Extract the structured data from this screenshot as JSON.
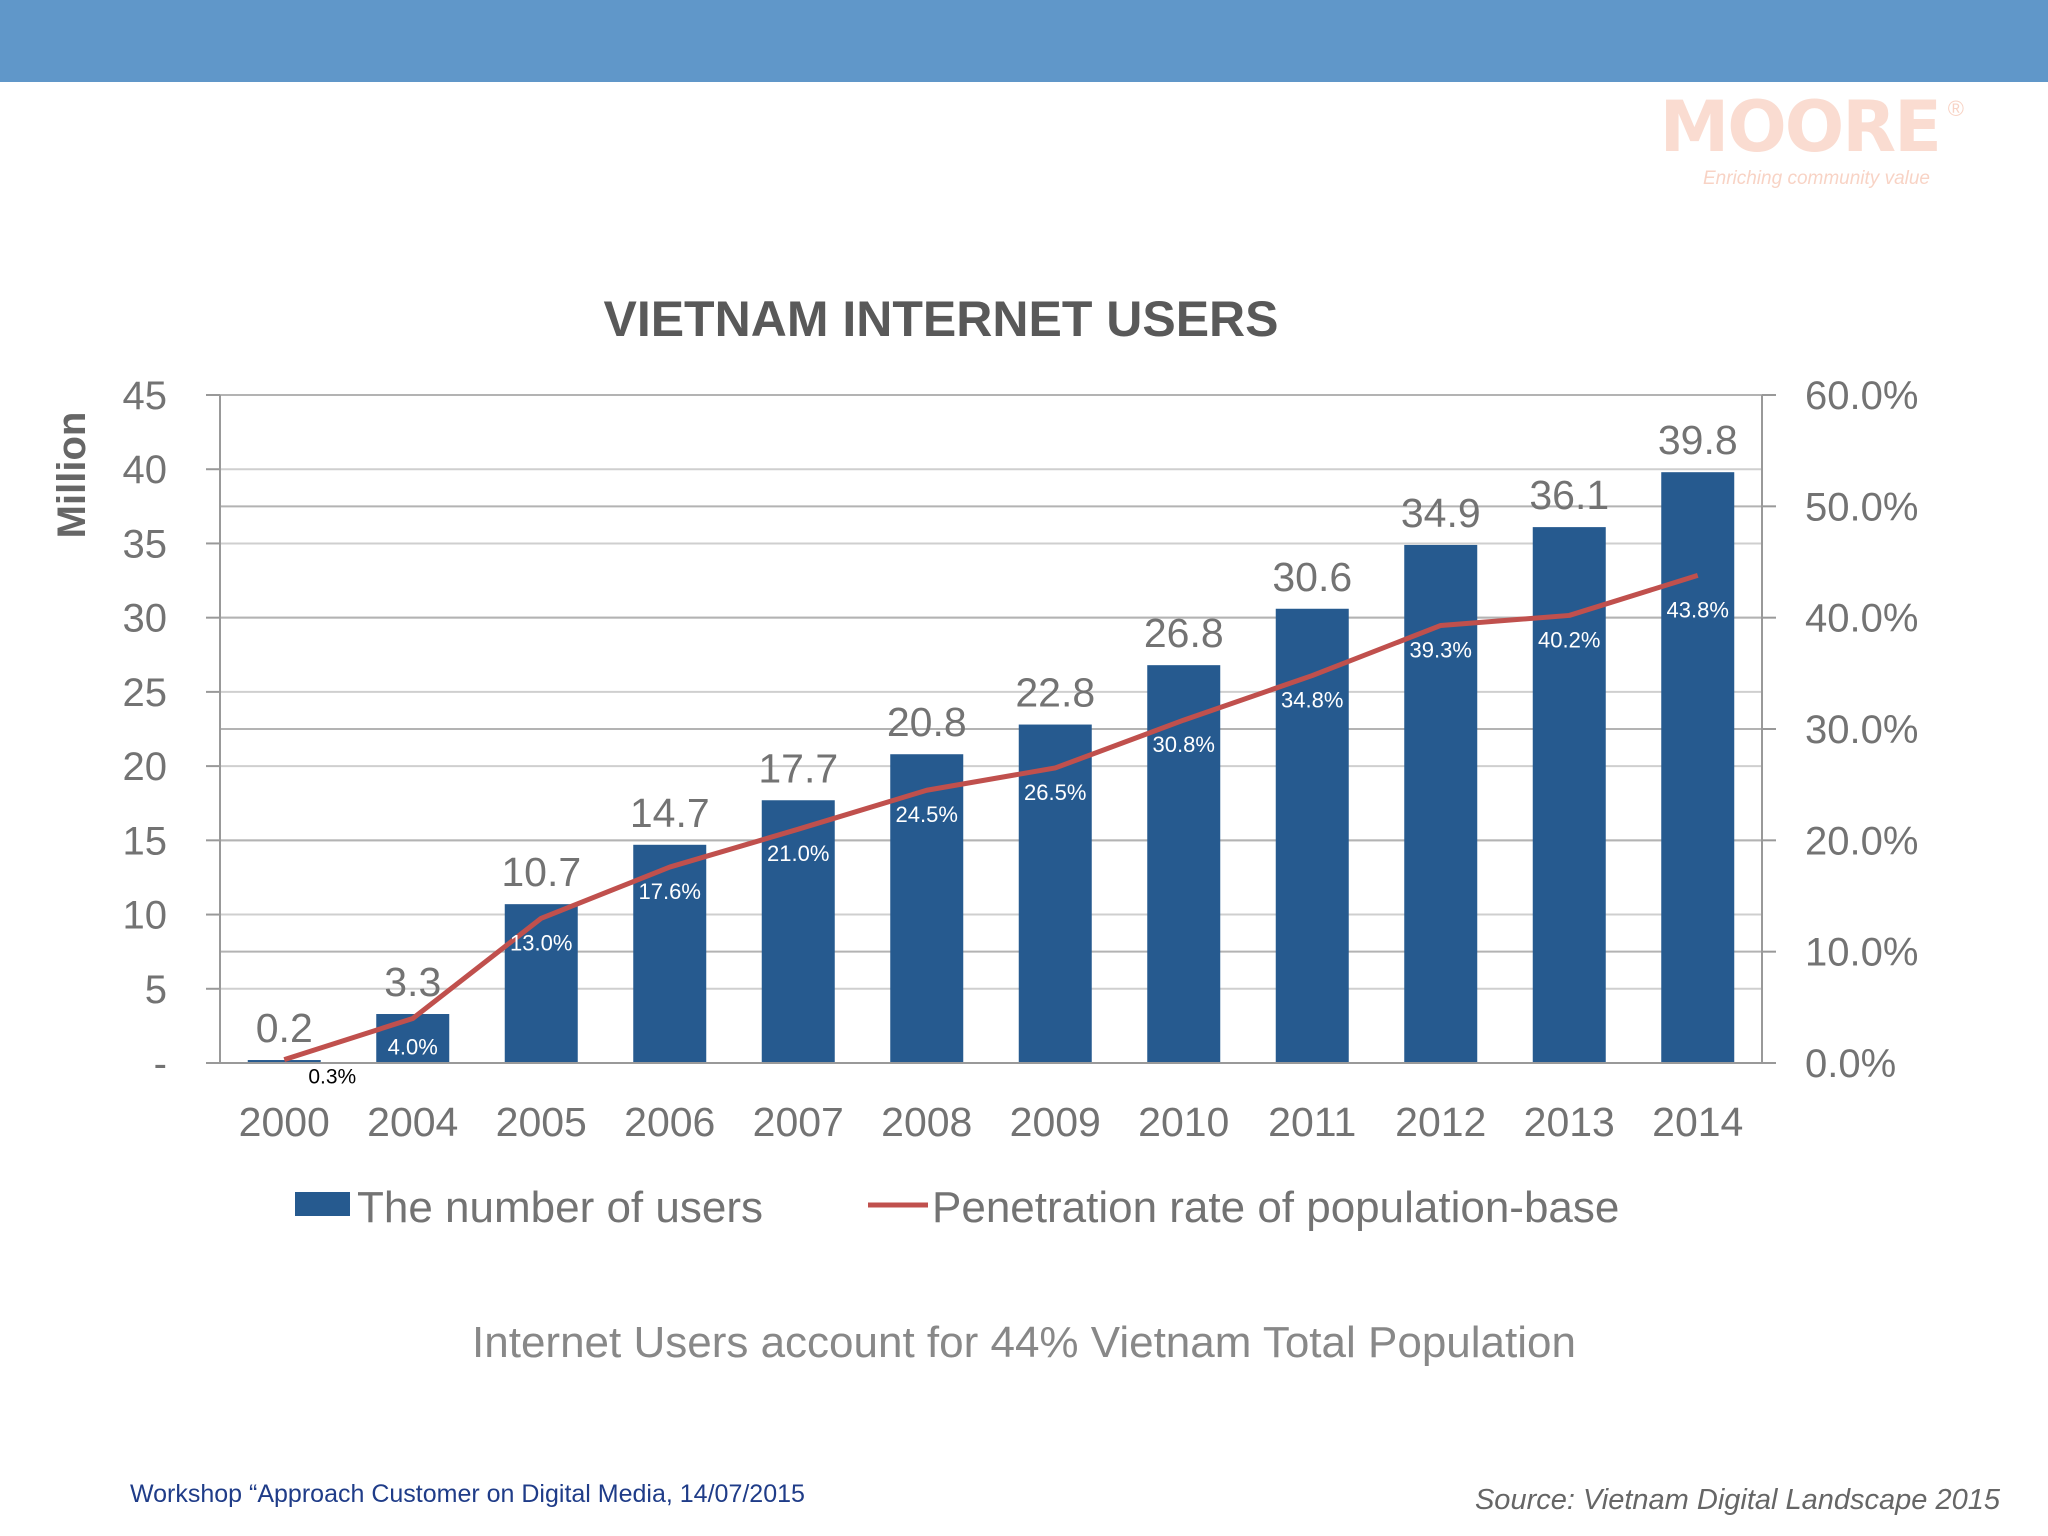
{
  "logo": {
    "word": "MOORE",
    "reg": "®",
    "tagline": "Enriching community value"
  },
  "chart_data": {
    "type": "bar",
    "title": "VIETNAM INTERNET USERS",
    "ylabel": "Million",
    "categories": [
      "2000",
      "2004",
      "2005",
      "2006",
      "2007",
      "2008",
      "2009",
      "2010",
      "2011",
      "2012",
      "2013",
      "2014"
    ],
    "series": [
      {
        "name": "The number of users",
        "kind": "bar",
        "axis": "left",
        "color": "#265a8f",
        "values": [
          0.2,
          3.3,
          10.7,
          14.7,
          17.7,
          20.8,
          22.8,
          26.8,
          30.6,
          34.9,
          36.1,
          39.8
        ],
        "labels": [
          "0.2",
          "3.3",
          "10.7",
          "14.7",
          "17.7",
          "20.8",
          "22.8",
          "26.8",
          "30.6",
          "34.9",
          "36.1",
          "39.8"
        ]
      },
      {
        "name": "Penetration rate of population-base",
        "kind": "line",
        "axis": "right",
        "color": "#c0504d",
        "values": [
          0.3,
          4.0,
          13.0,
          17.6,
          21.0,
          24.5,
          26.5,
          30.8,
          34.8,
          39.3,
          40.2,
          43.8
        ],
        "labels": [
          "0.3%",
          "4.0%",
          "13.0%",
          "17.6%",
          "21.0%",
          "24.5%",
          "26.5%",
          "30.8%",
          "34.8%",
          "39.3%",
          "40.2%",
          "43.8%"
        ]
      }
    ],
    "ylim": [
      0,
      45
    ],
    "y_ticks": [
      0,
      5,
      10,
      15,
      20,
      25,
      30,
      35,
      40,
      45
    ],
    "y_tick_labels": [
      "-",
      "5",
      "10",
      "15",
      "20",
      "25",
      "30",
      "35",
      "40",
      "45"
    ],
    "y2lim": [
      0,
      60
    ],
    "y2_ticks": [
      0,
      10,
      20,
      30,
      40,
      50,
      60
    ],
    "y2_tick_labels": [
      "0.0%",
      "10.0%",
      "20.0%",
      "30.0%",
      "40.0%",
      "50.0%",
      "60.0%"
    ],
    "legend_position": "bottom",
    "grid": true
  },
  "subtitle": "Internet Users account for 44% Vietnam Total Population",
  "footer": {
    "workshop": "Workshop “Approach Customer on Digital Media, 14/07/2015",
    "source": "Source: Vietnam Digital Landscape 2015"
  }
}
